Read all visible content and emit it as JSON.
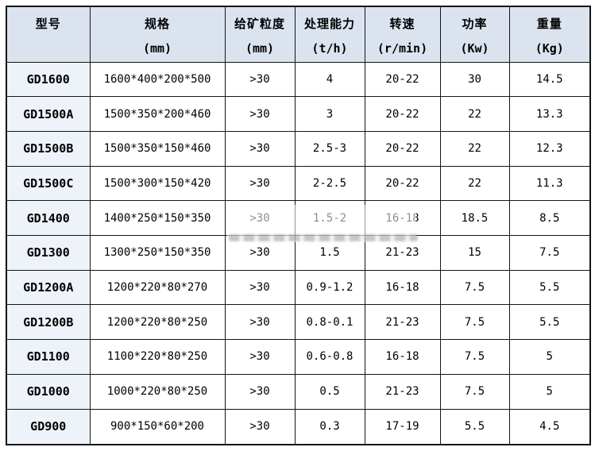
{
  "colors": {
    "page_bg": "#ffffff",
    "header_bg": "#dbe3ef",
    "model_col_bg": "#eef3fa",
    "border": "#151515",
    "text": "#000000"
  },
  "table": {
    "columns": [
      {
        "label": "型号",
        "unit": ""
      },
      {
        "label": "规格",
        "unit": "(mm)"
      },
      {
        "label": "给矿粒度",
        "unit": "(mm)"
      },
      {
        "label": "处理能力",
        "unit": "(t/h)"
      },
      {
        "label": "转速",
        "unit": "(r/min)"
      },
      {
        "label": "功率",
        "unit": "(Kw)"
      },
      {
        "label": "重量",
        "unit": "(Kg)"
      }
    ],
    "rows": [
      [
        "GD1600",
        "1600*400*200*500",
        ">30",
        "4",
        "20-22",
        "30",
        "14.5"
      ],
      [
        "GD1500A",
        "1500*350*200*460",
        ">30",
        "3",
        "20-22",
        "22",
        "13.3"
      ],
      [
        "GD1500B",
        "1500*350*150*460",
        ">30",
        "2.5-3",
        "20-22",
        "22",
        "12.3"
      ],
      [
        "GD1500C",
        "1500*300*150*420",
        ">30",
        "2-2.5",
        "20-22",
        "22",
        "11.3"
      ],
      [
        "GD1400",
        "1400*250*150*350",
        ">30",
        "1.5-2",
        "16-18",
        "18.5",
        "8.5"
      ],
      [
        "GD1300",
        "1300*250*150*350",
        ">30",
        "1.5",
        "21-23",
        "15",
        "7.5"
      ],
      [
        "GD1200A",
        "1200*220*80*270",
        ">30",
        "0.9-1.2",
        "16-18",
        "7.5",
        "5.5"
      ],
      [
        "GD1200B",
        "1200*220*80*250",
        ">30",
        "0.8-0.1",
        "21-23",
        "7.5",
        "5.5"
      ],
      [
        "GD1100",
        "1100*220*80*250",
        ">30",
        "0.6-0.8",
        "16-18",
        "7.5",
        "5"
      ],
      [
        "GD1000",
        "1000*220*80*250",
        ">30",
        "0.5",
        "21-23",
        "7.5",
        "5"
      ],
      [
        "GD900",
        "900*150*60*200",
        ">30",
        "0.3",
        "17-19",
        "5.5",
        "4.5"
      ]
    ]
  }
}
